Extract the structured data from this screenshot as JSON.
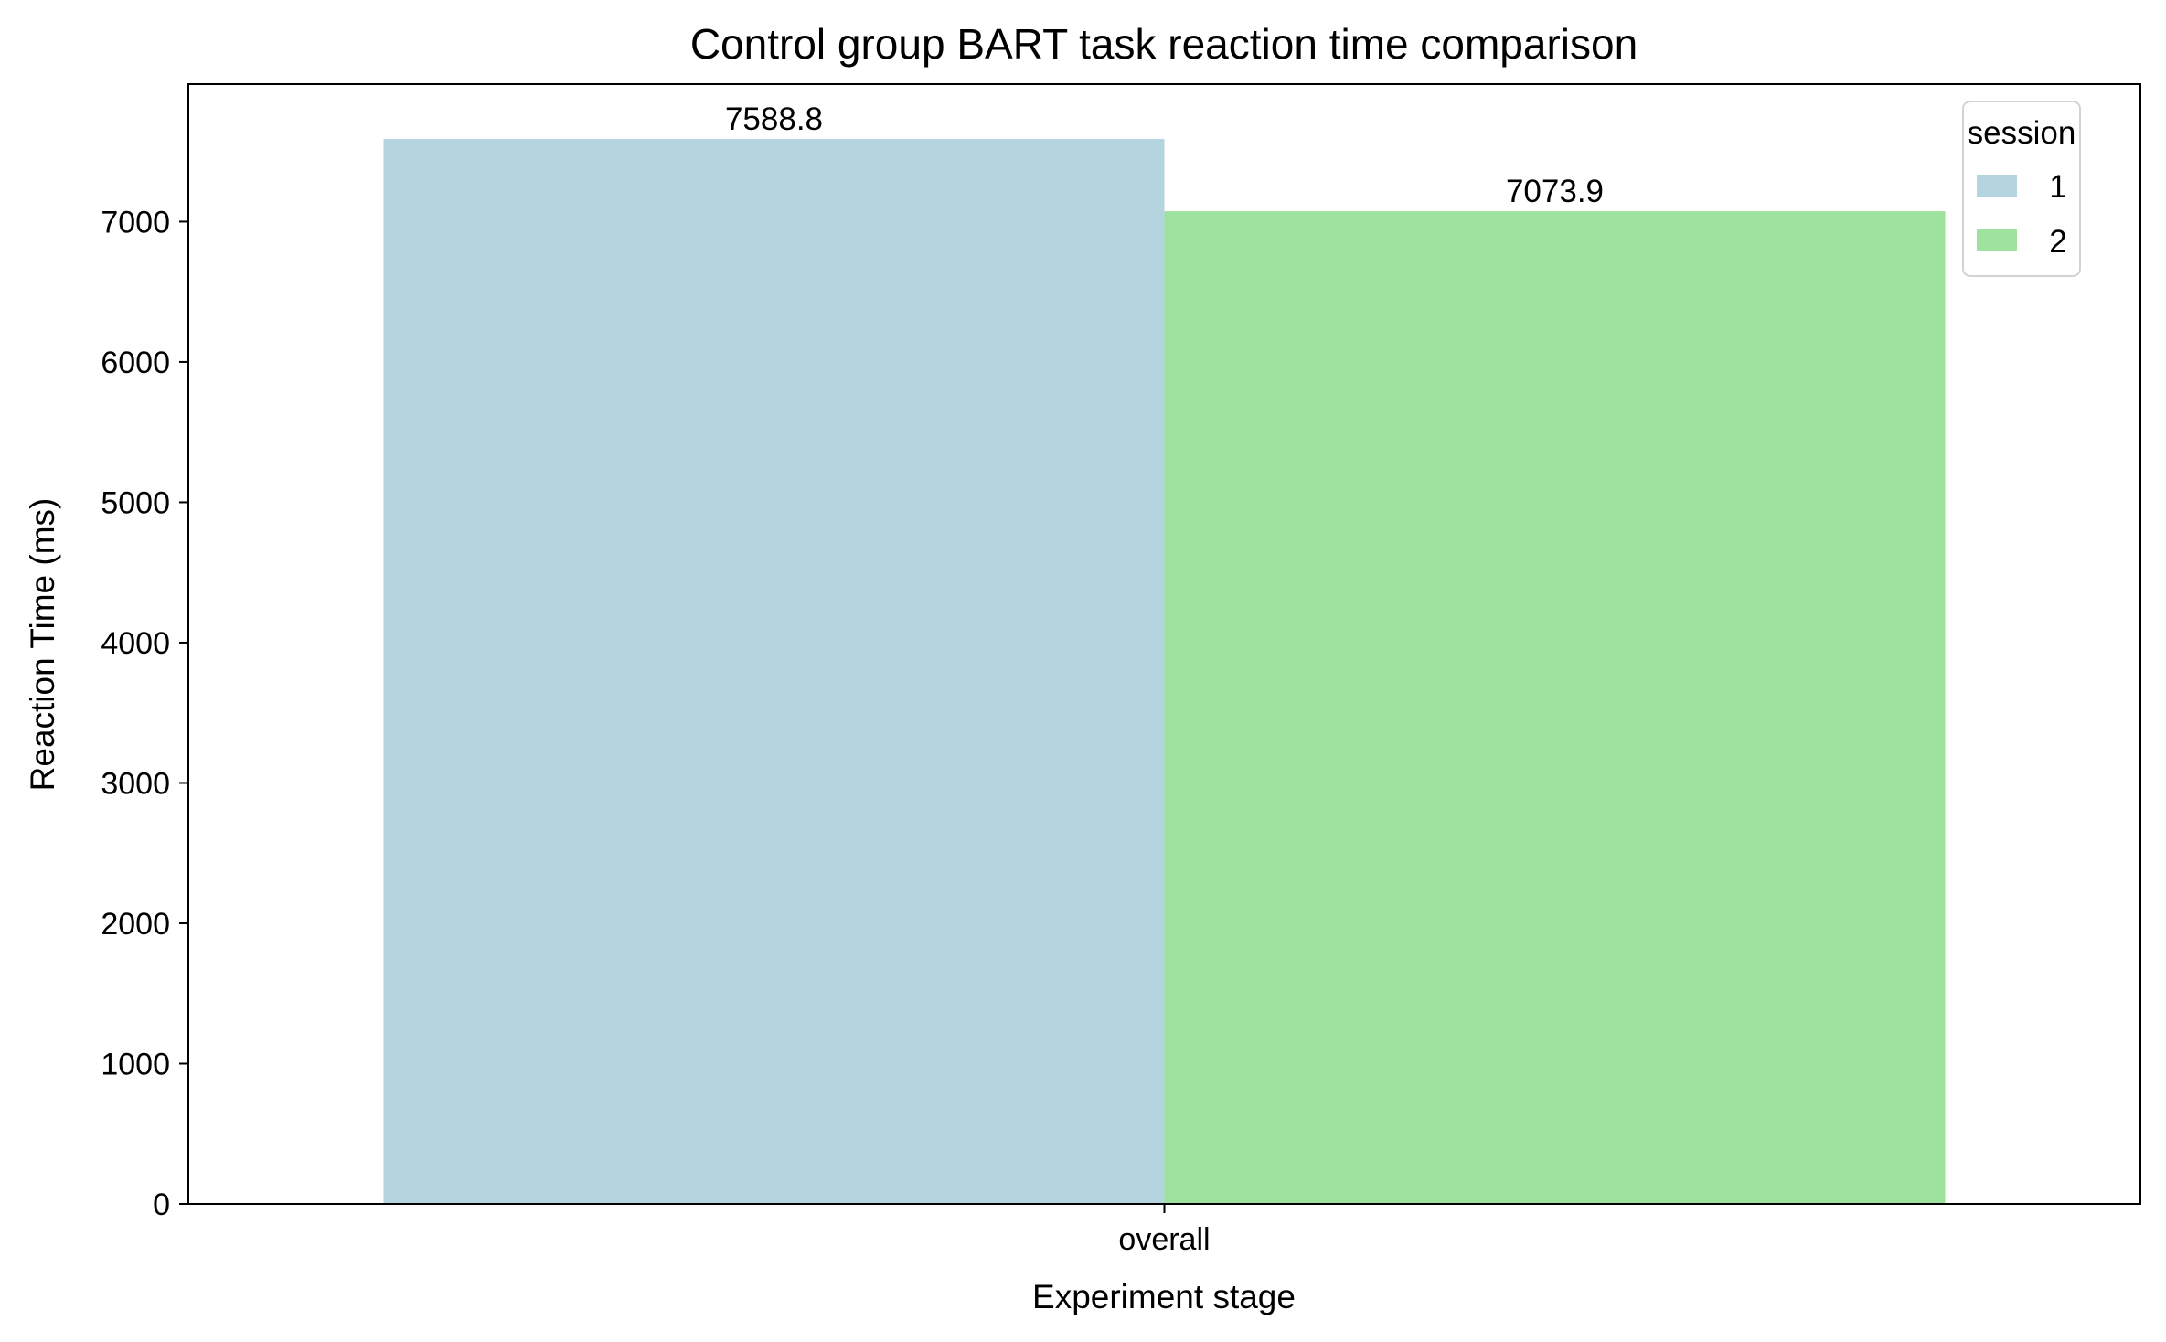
{
  "chart_data": {
    "type": "bar",
    "title": "Control group BART task reaction time comparison",
    "xlabel": "Experiment stage",
    "ylabel": "Reaction Time (ms)",
    "categories": [
      "overall"
    ],
    "series": [
      {
        "name": "1",
        "values": [
          7588.8
        ],
        "color": "#b4d5df"
      },
      {
        "name": "2",
        "values": [
          7073.9
        ],
        "color": "#9de29d"
      }
    ],
    "data_labels": [
      "7588.8",
      "7073.9"
    ],
    "ylim": [
      0,
      7980
    ],
    "yticks": [
      0,
      1000,
      2000,
      3000,
      4000,
      5000,
      6000,
      7000
    ],
    "grid": false,
    "legend": {
      "title": "session",
      "placement": "top-right"
    }
  }
}
